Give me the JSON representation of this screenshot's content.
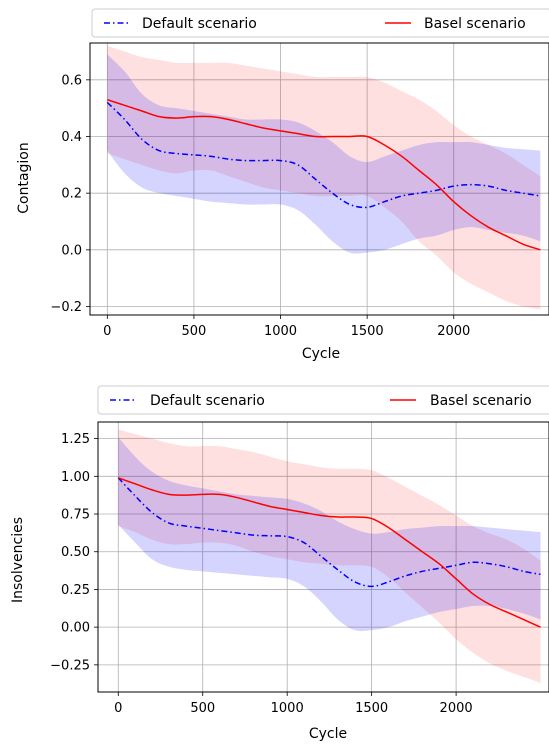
{
  "chart_data": [
    {
      "type": "line",
      "xlabel": "Cycle",
      "ylabel": "Contagion",
      "xlim": [
        -100,
        2550
      ],
      "ylim": [
        -0.23,
        0.73
      ],
      "xticks": [
        0,
        500,
        1000,
        1500,
        2000
      ],
      "xtick_labels": [
        "0",
        "500",
        "1000",
        "1500",
        "2000"
      ],
      "yticks": [
        -0.2,
        0.0,
        0.2,
        0.4,
        0.6
      ],
      "ytick_labels": [
        "−0.2",
        "0.0",
        "0.2",
        "0.4",
        "0.6"
      ],
      "grid": true,
      "legend": {
        "placement": "top",
        "entries": [
          "Default scenario",
          "Basel scenario"
        ]
      },
      "x": [
        0,
        100,
        200,
        300,
        400,
        500,
        600,
        700,
        800,
        900,
        1000,
        1100,
        1200,
        1300,
        1400,
        1500,
        1600,
        1700,
        1800,
        1900,
        2000,
        2100,
        2200,
        2300,
        2400,
        2500
      ],
      "series": [
        {
          "name": "Default scenario",
          "color": "#0000ff",
          "linestyle": "dashdot",
          "values": [
            0.52,
            0.46,
            0.39,
            0.35,
            0.34,
            0.335,
            0.33,
            0.32,
            0.315,
            0.315,
            0.315,
            0.3,
            0.25,
            0.2,
            0.16,
            0.15,
            0.17,
            0.19,
            0.2,
            0.21,
            0.225,
            0.23,
            0.225,
            0.21,
            0.2,
            0.19
          ],
          "upper": [
            0.69,
            0.63,
            0.55,
            0.51,
            0.5,
            0.49,
            0.48,
            0.47,
            0.46,
            0.46,
            0.46,
            0.45,
            0.42,
            0.38,
            0.33,
            0.31,
            0.33,
            0.35,
            0.37,
            0.38,
            0.38,
            0.38,
            0.37,
            0.36,
            0.355,
            0.35
          ],
          "lower": [
            0.35,
            0.27,
            0.22,
            0.2,
            0.19,
            0.18,
            0.17,
            0.165,
            0.16,
            0.16,
            0.16,
            0.14,
            0.09,
            0.03,
            -0.01,
            -0.01,
            0.0,
            0.02,
            0.04,
            0.05,
            0.07,
            0.08,
            0.07,
            0.06,
            0.05,
            0.03
          ]
        },
        {
          "name": "Basel scenario",
          "color": "#ff0000",
          "linestyle": "solid",
          "values": [
            0.53,
            0.51,
            0.49,
            0.47,
            0.465,
            0.47,
            0.47,
            0.46,
            0.445,
            0.43,
            0.42,
            0.41,
            0.4,
            0.4,
            0.4,
            0.4,
            0.37,
            0.33,
            0.28,
            0.23,
            0.17,
            0.12,
            0.08,
            0.05,
            0.02,
            0.0
          ],
          "upper": [
            0.72,
            0.7,
            0.68,
            0.67,
            0.66,
            0.66,
            0.66,
            0.66,
            0.65,
            0.64,
            0.63,
            0.62,
            0.61,
            0.61,
            0.61,
            0.61,
            0.59,
            0.56,
            0.53,
            0.49,
            0.44,
            0.4,
            0.37,
            0.34,
            0.3,
            0.26
          ],
          "lower": [
            0.34,
            0.32,
            0.3,
            0.28,
            0.27,
            0.28,
            0.28,
            0.26,
            0.24,
            0.22,
            0.21,
            0.2,
            0.19,
            0.19,
            0.19,
            0.19,
            0.15,
            0.1,
            0.03,
            -0.02,
            -0.08,
            -0.12,
            -0.15,
            -0.18,
            -0.2,
            -0.21
          ]
        }
      ]
    },
    {
      "type": "line",
      "xlabel": "Cycle",
      "ylabel": "Insolvencies",
      "xlim": [
        -120,
        2550
      ],
      "ylim": [
        -0.43,
        1.36
      ],
      "xticks": [
        0,
        500,
        1000,
        1500,
        2000
      ],
      "xtick_labels": [
        "0",
        "500",
        "1000",
        "1500",
        "2000"
      ],
      "yticks": [
        -0.25,
        0.0,
        0.25,
        0.5,
        0.75,
        1.0,
        1.25
      ],
      "ytick_labels": [
        "−0.25",
        "0.00",
        "0.25",
        "0.50",
        "0.75",
        "1.00",
        "1.25"
      ],
      "grid": true,
      "legend": {
        "placement": "top",
        "entries": [
          "Default scenario",
          "Basel scenario"
        ]
      },
      "x": [
        0,
        100,
        200,
        300,
        400,
        500,
        600,
        700,
        800,
        900,
        1000,
        1100,
        1200,
        1300,
        1400,
        1500,
        1600,
        1700,
        1800,
        1900,
        2000,
        2100,
        2200,
        2300,
        2400,
        2500
      ],
      "series": [
        {
          "name": "Default scenario",
          "color": "#0000ff",
          "linestyle": "dashdot",
          "values": [
            0.99,
            0.87,
            0.76,
            0.69,
            0.67,
            0.655,
            0.64,
            0.625,
            0.61,
            0.605,
            0.6,
            0.56,
            0.47,
            0.38,
            0.3,
            0.27,
            0.3,
            0.34,
            0.37,
            0.39,
            0.41,
            0.43,
            0.42,
            0.4,
            0.37,
            0.35
          ],
          "upper": [
            1.26,
            1.13,
            1.03,
            0.97,
            0.94,
            0.92,
            0.9,
            0.88,
            0.87,
            0.86,
            0.85,
            0.82,
            0.77,
            0.7,
            0.65,
            0.62,
            0.63,
            0.65,
            0.66,
            0.67,
            0.67,
            0.67,
            0.66,
            0.65,
            0.64,
            0.63
          ],
          "lower": [
            0.68,
            0.56,
            0.45,
            0.4,
            0.38,
            0.37,
            0.36,
            0.35,
            0.34,
            0.33,
            0.32,
            0.27,
            0.17,
            0.05,
            -0.02,
            -0.02,
            0.0,
            0.04,
            0.07,
            0.1,
            0.12,
            0.14,
            0.14,
            0.12,
            0.09,
            0.05
          ]
        },
        {
          "name": "Basel scenario",
          "color": "#ff0000",
          "linestyle": "solid",
          "values": [
            0.99,
            0.95,
            0.91,
            0.88,
            0.875,
            0.88,
            0.88,
            0.86,
            0.83,
            0.8,
            0.78,
            0.76,
            0.74,
            0.73,
            0.73,
            0.72,
            0.66,
            0.58,
            0.5,
            0.42,
            0.32,
            0.22,
            0.15,
            0.1,
            0.05,
            0.0
          ],
          "upper": [
            1.31,
            1.28,
            1.25,
            1.22,
            1.2,
            1.2,
            1.2,
            1.18,
            1.16,
            1.13,
            1.1,
            1.08,
            1.06,
            1.05,
            1.05,
            1.04,
            0.99,
            0.93,
            0.87,
            0.81,
            0.74,
            0.67,
            0.62,
            0.58,
            0.52,
            0.44
          ],
          "lower": [
            0.67,
            0.63,
            0.58,
            0.55,
            0.55,
            0.56,
            0.56,
            0.54,
            0.5,
            0.47,
            0.45,
            0.43,
            0.42,
            0.41,
            0.41,
            0.4,
            0.33,
            0.23,
            0.13,
            0.03,
            -0.08,
            -0.17,
            -0.24,
            -0.29,
            -0.33,
            -0.37
          ]
        }
      ]
    }
  ]
}
